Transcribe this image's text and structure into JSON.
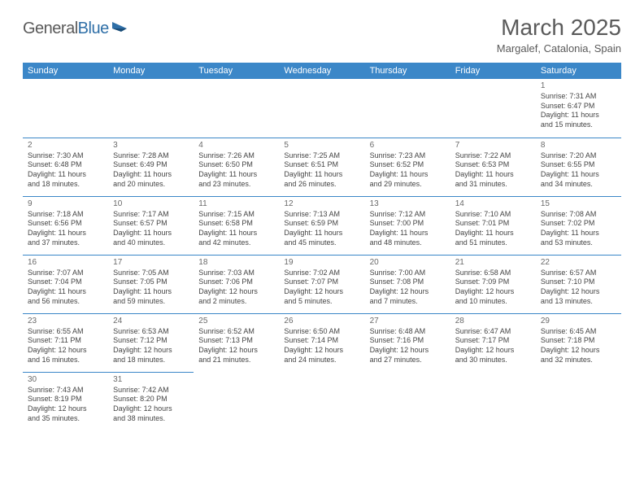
{
  "logo": {
    "text1": "General",
    "text2": "Blue"
  },
  "title": {
    "month": "March 2025",
    "location": "Margalef, Catalonia, Spain"
  },
  "colors": {
    "header_bg": "#3b87c8",
    "header_text": "#ffffff",
    "grid_line": "#3b87c8",
    "text": "#444444",
    "title_text": "#5a5a5a",
    "logo_gray": "#5a5a5a",
    "logo_blue": "#2f6fa7"
  },
  "weekdays": [
    "Sunday",
    "Monday",
    "Tuesday",
    "Wednesday",
    "Thursday",
    "Friday",
    "Saturday"
  ],
  "weeks": [
    [
      null,
      null,
      null,
      null,
      null,
      null,
      {
        "day": "1",
        "sunrise": "Sunrise: 7:31 AM",
        "sunset": "Sunset: 6:47 PM",
        "dl1": "Daylight: 11 hours",
        "dl2": "and 15 minutes."
      }
    ],
    [
      {
        "day": "2",
        "sunrise": "Sunrise: 7:30 AM",
        "sunset": "Sunset: 6:48 PM",
        "dl1": "Daylight: 11 hours",
        "dl2": "and 18 minutes."
      },
      {
        "day": "3",
        "sunrise": "Sunrise: 7:28 AM",
        "sunset": "Sunset: 6:49 PM",
        "dl1": "Daylight: 11 hours",
        "dl2": "and 20 minutes."
      },
      {
        "day": "4",
        "sunrise": "Sunrise: 7:26 AM",
        "sunset": "Sunset: 6:50 PM",
        "dl1": "Daylight: 11 hours",
        "dl2": "and 23 minutes."
      },
      {
        "day": "5",
        "sunrise": "Sunrise: 7:25 AM",
        "sunset": "Sunset: 6:51 PM",
        "dl1": "Daylight: 11 hours",
        "dl2": "and 26 minutes."
      },
      {
        "day": "6",
        "sunrise": "Sunrise: 7:23 AM",
        "sunset": "Sunset: 6:52 PM",
        "dl1": "Daylight: 11 hours",
        "dl2": "and 29 minutes."
      },
      {
        "day": "7",
        "sunrise": "Sunrise: 7:22 AM",
        "sunset": "Sunset: 6:53 PM",
        "dl1": "Daylight: 11 hours",
        "dl2": "and 31 minutes."
      },
      {
        "day": "8",
        "sunrise": "Sunrise: 7:20 AM",
        "sunset": "Sunset: 6:55 PM",
        "dl1": "Daylight: 11 hours",
        "dl2": "and 34 minutes."
      }
    ],
    [
      {
        "day": "9",
        "sunrise": "Sunrise: 7:18 AM",
        "sunset": "Sunset: 6:56 PM",
        "dl1": "Daylight: 11 hours",
        "dl2": "and 37 minutes."
      },
      {
        "day": "10",
        "sunrise": "Sunrise: 7:17 AM",
        "sunset": "Sunset: 6:57 PM",
        "dl1": "Daylight: 11 hours",
        "dl2": "and 40 minutes."
      },
      {
        "day": "11",
        "sunrise": "Sunrise: 7:15 AM",
        "sunset": "Sunset: 6:58 PM",
        "dl1": "Daylight: 11 hours",
        "dl2": "and 42 minutes."
      },
      {
        "day": "12",
        "sunrise": "Sunrise: 7:13 AM",
        "sunset": "Sunset: 6:59 PM",
        "dl1": "Daylight: 11 hours",
        "dl2": "and 45 minutes."
      },
      {
        "day": "13",
        "sunrise": "Sunrise: 7:12 AM",
        "sunset": "Sunset: 7:00 PM",
        "dl1": "Daylight: 11 hours",
        "dl2": "and 48 minutes."
      },
      {
        "day": "14",
        "sunrise": "Sunrise: 7:10 AM",
        "sunset": "Sunset: 7:01 PM",
        "dl1": "Daylight: 11 hours",
        "dl2": "and 51 minutes."
      },
      {
        "day": "15",
        "sunrise": "Sunrise: 7:08 AM",
        "sunset": "Sunset: 7:02 PM",
        "dl1": "Daylight: 11 hours",
        "dl2": "and 53 minutes."
      }
    ],
    [
      {
        "day": "16",
        "sunrise": "Sunrise: 7:07 AM",
        "sunset": "Sunset: 7:04 PM",
        "dl1": "Daylight: 11 hours",
        "dl2": "and 56 minutes."
      },
      {
        "day": "17",
        "sunrise": "Sunrise: 7:05 AM",
        "sunset": "Sunset: 7:05 PM",
        "dl1": "Daylight: 11 hours",
        "dl2": "and 59 minutes."
      },
      {
        "day": "18",
        "sunrise": "Sunrise: 7:03 AM",
        "sunset": "Sunset: 7:06 PM",
        "dl1": "Daylight: 12 hours",
        "dl2": "and 2 minutes."
      },
      {
        "day": "19",
        "sunrise": "Sunrise: 7:02 AM",
        "sunset": "Sunset: 7:07 PM",
        "dl1": "Daylight: 12 hours",
        "dl2": "and 5 minutes."
      },
      {
        "day": "20",
        "sunrise": "Sunrise: 7:00 AM",
        "sunset": "Sunset: 7:08 PM",
        "dl1": "Daylight: 12 hours",
        "dl2": "and 7 minutes."
      },
      {
        "day": "21",
        "sunrise": "Sunrise: 6:58 AM",
        "sunset": "Sunset: 7:09 PM",
        "dl1": "Daylight: 12 hours",
        "dl2": "and 10 minutes."
      },
      {
        "day": "22",
        "sunrise": "Sunrise: 6:57 AM",
        "sunset": "Sunset: 7:10 PM",
        "dl1": "Daylight: 12 hours",
        "dl2": "and 13 minutes."
      }
    ],
    [
      {
        "day": "23",
        "sunrise": "Sunrise: 6:55 AM",
        "sunset": "Sunset: 7:11 PM",
        "dl1": "Daylight: 12 hours",
        "dl2": "and 16 minutes."
      },
      {
        "day": "24",
        "sunrise": "Sunrise: 6:53 AM",
        "sunset": "Sunset: 7:12 PM",
        "dl1": "Daylight: 12 hours",
        "dl2": "and 18 minutes."
      },
      {
        "day": "25",
        "sunrise": "Sunrise: 6:52 AM",
        "sunset": "Sunset: 7:13 PM",
        "dl1": "Daylight: 12 hours",
        "dl2": "and 21 minutes."
      },
      {
        "day": "26",
        "sunrise": "Sunrise: 6:50 AM",
        "sunset": "Sunset: 7:14 PM",
        "dl1": "Daylight: 12 hours",
        "dl2": "and 24 minutes."
      },
      {
        "day": "27",
        "sunrise": "Sunrise: 6:48 AM",
        "sunset": "Sunset: 7:16 PM",
        "dl1": "Daylight: 12 hours",
        "dl2": "and 27 minutes."
      },
      {
        "day": "28",
        "sunrise": "Sunrise: 6:47 AM",
        "sunset": "Sunset: 7:17 PM",
        "dl1": "Daylight: 12 hours",
        "dl2": "and 30 minutes."
      },
      {
        "day": "29",
        "sunrise": "Sunrise: 6:45 AM",
        "sunset": "Sunset: 7:18 PM",
        "dl1": "Daylight: 12 hours",
        "dl2": "and 32 minutes."
      }
    ],
    [
      {
        "day": "30",
        "sunrise": "Sunrise: 7:43 AM",
        "sunset": "Sunset: 8:19 PM",
        "dl1": "Daylight: 12 hours",
        "dl2": "and 35 minutes."
      },
      {
        "day": "31",
        "sunrise": "Sunrise: 7:42 AM",
        "sunset": "Sunset: 8:20 PM",
        "dl1": "Daylight: 12 hours",
        "dl2": "and 38 minutes."
      },
      null,
      null,
      null,
      null,
      null
    ]
  ]
}
